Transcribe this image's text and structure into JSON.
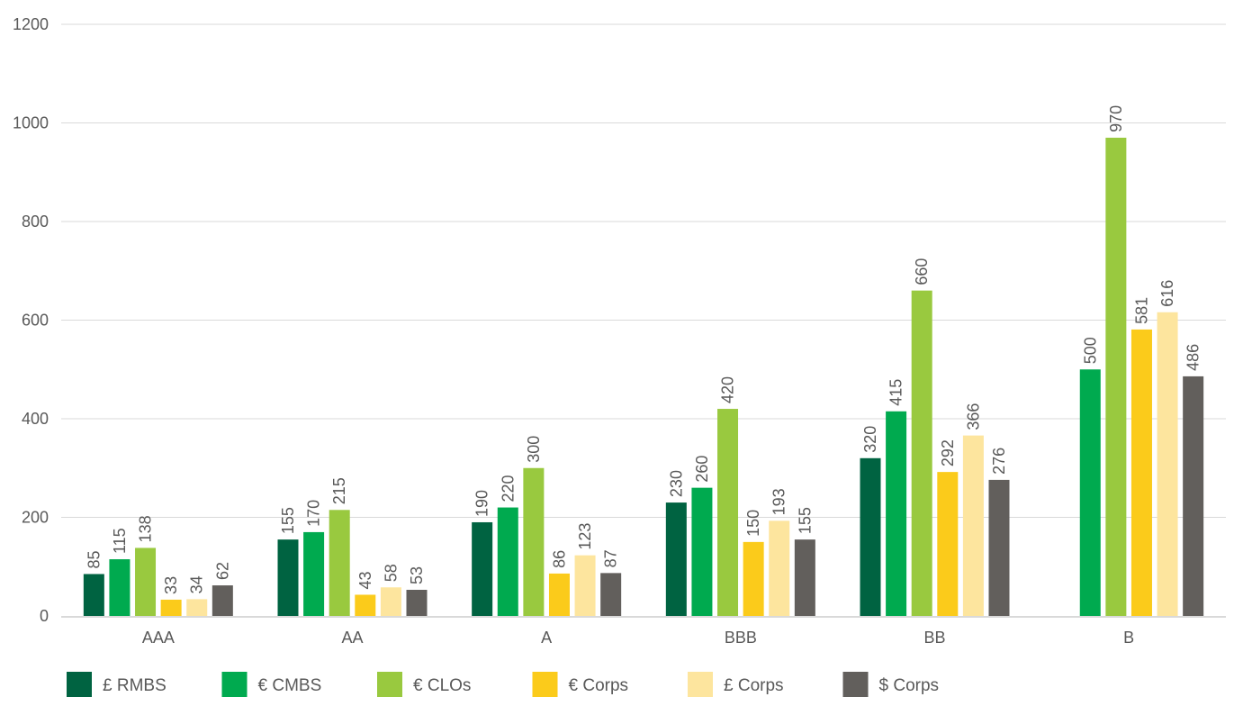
{
  "chart_data": {
    "type": "bar",
    "title": "",
    "xlabel": "",
    "ylabel": "",
    "ylim": [
      0,
      1200
    ],
    "yticks": [
      0,
      200,
      400,
      600,
      800,
      1000,
      1200
    ],
    "grid": true,
    "legend_position": "bottom",
    "categories": [
      "AAA",
      "AA",
      "A",
      "BBB",
      "BB",
      "B"
    ],
    "series": [
      {
        "name": "£ RMBS",
        "color": "#006341",
        "values": [
          85,
          155,
          190,
          230,
          320,
          null
        ]
      },
      {
        "name": "€ CMBS",
        "color": "#00AA4F",
        "values": [
          115,
          170,
          220,
          260,
          415,
          500
        ]
      },
      {
        "name": "€ CLOs",
        "color": "#99C93F",
        "values": [
          138,
          215,
          300,
          420,
          660,
          970
        ]
      },
      {
        "name": "€ Corps",
        "color": "#FBCB1B",
        "values": [
          33,
          43,
          86,
          150,
          292,
          581
        ]
      },
      {
        "name": "£ Corps",
        "color": "#FDE59E",
        "values": [
          34,
          58,
          123,
          193,
          366,
          616
        ]
      },
      {
        "name": "$ Corps",
        "color": "#625F5C",
        "values": [
          62,
          53,
          87,
          155,
          276,
          486
        ]
      }
    ]
  }
}
